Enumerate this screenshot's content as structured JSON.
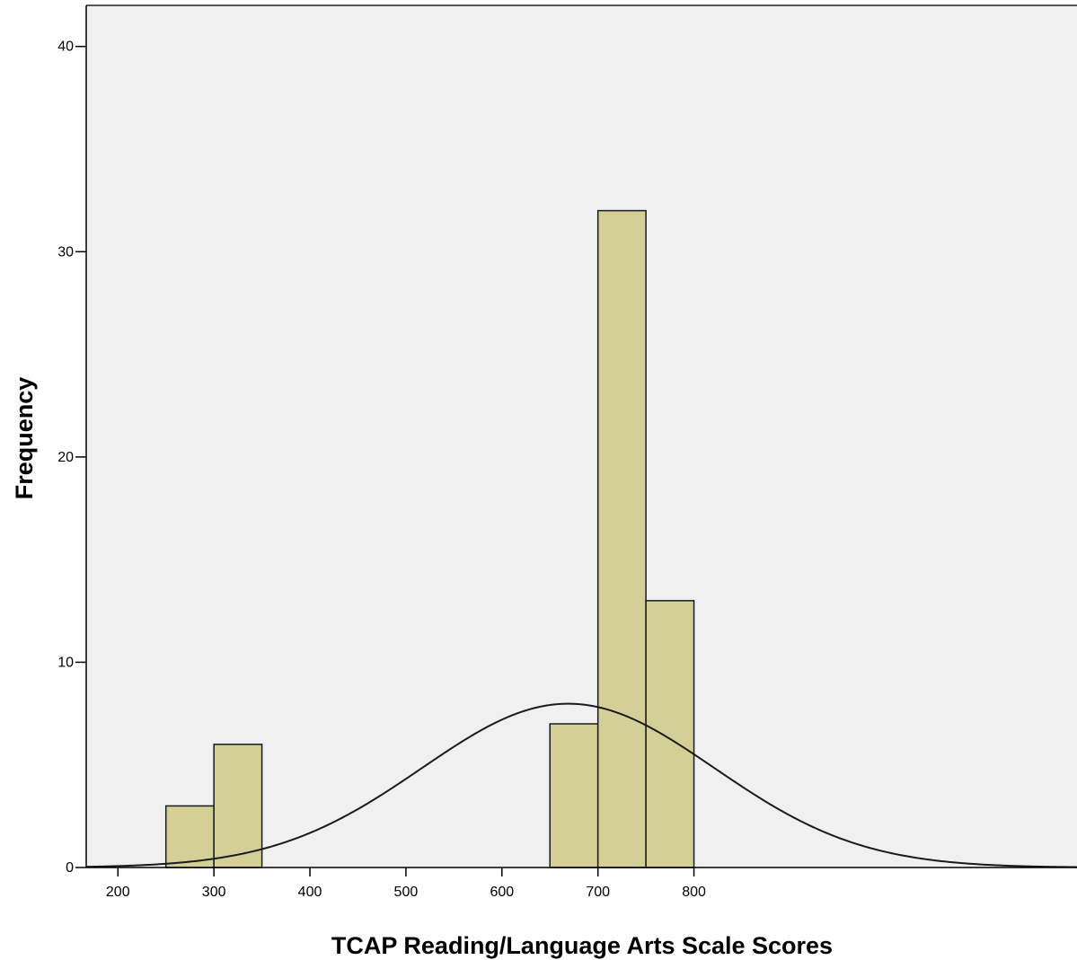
{
  "chart_data": {
    "type": "histogram",
    "title": "",
    "xlabel": "TCAP Reading/Language Arts Scale Scores",
    "ylabel": "Frequency",
    "bin_width": 50,
    "bins": [
      {
        "start": 250,
        "end": 300,
        "count": 3
      },
      {
        "start": 300,
        "end": 350,
        "count": 6
      },
      {
        "start": 650,
        "end": 700,
        "count": 7
      },
      {
        "start": 700,
        "end": 750,
        "count": 32
      },
      {
        "start": 750,
        "end": 800,
        "count": 13
      }
    ],
    "x_ticks": [
      200,
      300,
      400,
      500,
      600,
      700,
      800
    ],
    "x_tick_labels": [
      "200",
      "300",
      "400",
      "500",
      "600",
      "700",
      "800"
    ],
    "y_ticks": [
      0,
      10,
      20,
      30,
      40
    ],
    "y_tick_labels": [
      "0",
      "10",
      "20",
      "30",
      "40"
    ],
    "xlim": [
      167,
      1199
    ],
    "ylim": [
      0,
      42
    ],
    "normal_curve": {
      "mean": 669,
      "std_dev": 152.5,
      "n": 61
    },
    "grid": false,
    "legend": "none",
    "colors": {
      "bar_fill": "#d4cf97",
      "bar_stroke": "#1a1a1a",
      "plot_background": "#f0f0f0",
      "curve": "#1a1a1a"
    }
  }
}
